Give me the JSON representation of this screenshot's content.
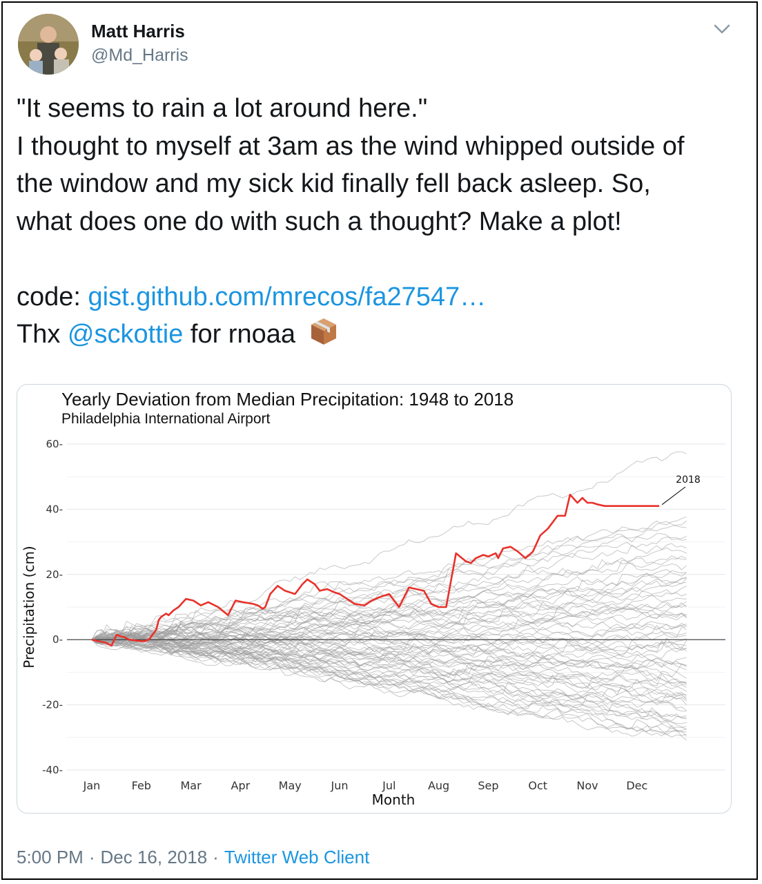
{
  "tweet": {
    "author_name": "Matt Harris",
    "author_handle": "@Md_Harris",
    "lines": [
      "\"It seems to rain a lot around here.\"",
      "I thought to myself at 3am as the wind whipped outside of",
      "the window and my sick kid finally fell back asleep. So,",
      "what does one do with such a thought? Make a plot!"
    ],
    "code_prefix": "code:",
    "code_link": "gist.github.com/mrecos/fa27547…",
    "thx_prefix": "Thx",
    "mention": "@sckottie",
    "thx_suffix": "for rnoaa",
    "time": "5:00 PM",
    "separator": "·",
    "date": "Dec 16, 2018",
    "client": "Twitter Web Client",
    "icons": [
      "chevron-down-icon",
      "package-icon"
    ],
    "colors": {
      "link": "#1b95e0",
      "secondary_text": "#657786",
      "highlight_line": "#e8312a",
      "other_lines": "#9a9a9a"
    }
  },
  "chart_data": {
    "type": "line",
    "title": "Yearly Deviation from Median Precipitation: 1948 to 2018",
    "subtitle": "Philadelphia International Airport",
    "xlabel": "Month",
    "ylabel": "Precipitation (cm)",
    "x_ticks": [
      "Jan",
      "Feb",
      "Mar",
      "Apr",
      "May",
      "Jun",
      "Jul",
      "Aug",
      "Sep",
      "Oct",
      "Nov",
      "Dec"
    ],
    "y_ticks": [
      60,
      40,
      20,
      0,
      -20,
      -40
    ],
    "xlim": [
      0,
      12
    ],
    "ylim": [
      -40,
      60
    ],
    "grid": true,
    "reference_line": 0,
    "annotation": "2018",
    "highlight_series": {
      "name": "2018",
      "x": [
        0.0,
        0.15,
        0.3,
        0.35,
        0.4,
        0.5,
        0.55,
        0.65,
        0.75,
        0.9,
        1.05,
        1.15,
        1.3,
        1.35,
        1.4,
        1.5,
        1.55,
        1.65,
        1.75,
        1.9,
        2.05,
        2.2,
        2.35,
        2.55,
        2.75,
        2.9,
        3.05,
        3.25,
        3.35,
        3.45,
        3.5,
        3.6,
        3.75,
        3.9,
        4.1,
        4.25,
        4.35,
        4.5,
        4.6,
        4.75,
        4.9,
        5.0,
        5.15,
        5.3,
        5.5,
        5.65,
        5.8,
        6.0,
        6.2,
        6.4,
        6.55,
        6.7,
        6.85,
        7.0,
        7.15,
        7.35,
        7.55,
        7.65,
        7.75,
        7.9,
        8.0,
        8.15,
        8.2,
        8.3,
        8.45,
        8.6,
        8.75,
        8.9,
        9.05,
        9.2,
        9.4,
        9.55,
        9.65,
        9.8,
        9.9,
        10.0,
        10.1,
        10.2,
        10.35,
        10.5,
        10.65,
        10.75,
        10.85,
        11.0,
        11.15,
        11.3,
        11.45
      ],
      "y": [
        0.0,
        -0.5,
        -1.0,
        -1.5,
        -1.8,
        1.5,
        1.2,
        0.8,
        0.0,
        -0.3,
        -0.5,
        0.0,
        3.0,
        6.0,
        7.0,
        8.0,
        7.5,
        9.0,
        10.0,
        12.5,
        12.0,
        10.5,
        11.5,
        10.0,
        7.5,
        12.0,
        11.5,
        11.0,
        10.5,
        9.5,
        10.0,
        14.0,
        16.5,
        15.0,
        14.0,
        17.0,
        18.5,
        17.0,
        15.0,
        15.5,
        14.5,
        14.0,
        12.5,
        11.0,
        10.5,
        12.0,
        13.0,
        14.0,
        10.0,
        16.0,
        15.5,
        15.0,
        11.0,
        10.0,
        10.0,
        26.5,
        24.0,
        23.5,
        25.0,
        26.0,
        25.5,
        26.5,
        25.0,
        28.0,
        28.5,
        27.0,
        25.0,
        27.0,
        32.0,
        34.0,
        38.0,
        38.0,
        44.5,
        42.0,
        43.5,
        42.0,
        42.0,
        41.5,
        41.0,
        41.0,
        41.0,
        41.0,
        41.0,
        41.0,
        41.0,
        41.0,
        41.0
      ]
    },
    "background_series_approx": {
      "count": 70,
      "end_values": [
        58,
        39,
        38,
        36,
        35,
        33,
        30,
        28,
        26,
        24,
        22,
        21,
        20,
        19,
        18,
        17,
        16,
        15,
        14,
        13,
        12,
        11,
        10,
        9,
        8,
        7,
        6,
        5,
        4,
        3,
        2,
        1,
        0,
        -1,
        -2,
        -3,
        -4,
        -5,
        -6,
        -7,
        -8,
        -9,
        -10,
        -11,
        -12,
        -13,
        -14,
        -15,
        -16,
        -17,
        -18,
        -19,
        -20,
        -21,
        -22,
        -23,
        -24,
        -25,
        -26,
        -27,
        -28,
        -29,
        -30,
        -31,
        -32,
        -30,
        -25,
        -18,
        -12,
        -5
      ]
    }
  }
}
